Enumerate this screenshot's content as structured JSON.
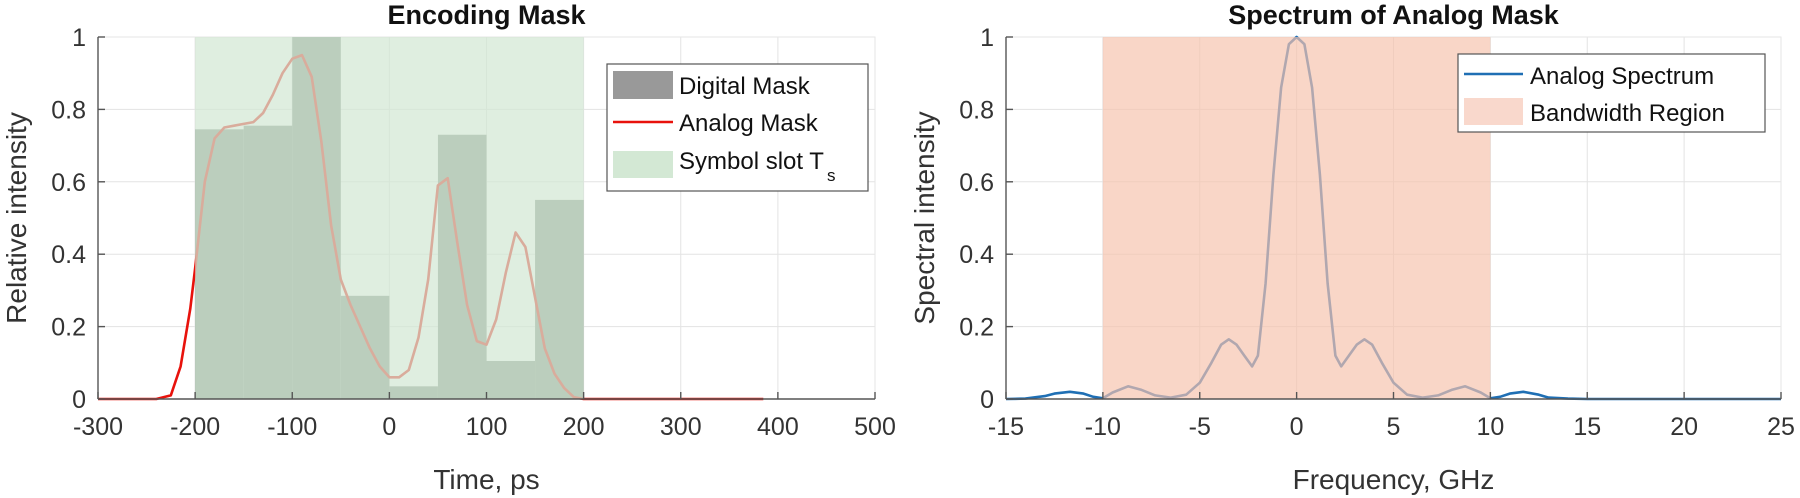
{
  "chart_data": [
    {
      "type": "bar+line",
      "title": "Encoding Mask",
      "xlabel": "Time, ps",
      "ylabel": "Relative intensity",
      "xlim": [
        -300,
        500
      ],
      "ylim": [
        0,
        1
      ],
      "xticks": [
        -300,
        -200,
        -100,
        0,
        100,
        200,
        300,
        400,
        500
      ],
      "yticks": [
        0,
        0.2,
        0.4,
        0.6,
        0.8,
        1
      ],
      "ytick_labels": [
        "0",
        "0.2",
        "0.4",
        "0.6",
        "0.8",
        "1"
      ],
      "grid": true,
      "legend_position": "northeast",
      "legend": [
        "Digital Mask",
        "Analog Mask",
        "Symbol slot T_s"
      ],
      "series": [
        {
          "name": "Digital Mask",
          "type": "bar",
          "color": "#7f8c80",
          "bins": [
            [
              -200,
              -150
            ],
            [
              -150,
              -100
            ],
            [
              -100,
              -50
            ],
            [
              -50,
              0
            ],
            [
              0,
              50
            ],
            [
              50,
              100
            ],
            [
              100,
              150
            ],
            [
              150,
              200
            ]
          ],
          "values": [
            0.745,
            0.755,
            1.0,
            0.285,
            0.035,
            0.73,
            0.105,
            0.55
          ]
        },
        {
          "name": "Analog Mask",
          "type": "line",
          "color": "#e8120c",
          "x": [
            -300,
            -240,
            -225,
            -215,
            -205,
            -200,
            -190,
            -180,
            -170,
            -160,
            -150,
            -140,
            -130,
            -120,
            -110,
            -100,
            -90,
            -80,
            -70,
            -60,
            -50,
            -40,
            -30,
            -20,
            -10,
            0,
            10,
            20,
            30,
            40,
            50,
            60,
            70,
            80,
            90,
            100,
            110,
            120,
            130,
            140,
            150,
            160,
            170,
            180,
            190,
            200,
            210,
            220,
            240,
            385
          ],
          "y": [
            0,
            0,
            0.01,
            0.09,
            0.25,
            0.36,
            0.6,
            0.72,
            0.75,
            0.755,
            0.76,
            0.765,
            0.79,
            0.84,
            0.9,
            0.94,
            0.95,
            0.89,
            0.71,
            0.48,
            0.33,
            0.26,
            0.2,
            0.14,
            0.09,
            0.06,
            0.06,
            0.08,
            0.17,
            0.33,
            0.59,
            0.61,
            0.43,
            0.26,
            0.16,
            0.15,
            0.22,
            0.35,
            0.46,
            0.42,
            0.28,
            0.14,
            0.07,
            0.03,
            0.005,
            0,
            0,
            0,
            0,
            0
          ]
        },
        {
          "name": "Symbol slot T_s",
          "type": "area",
          "color": "#d3e8d4",
          "x_range": [
            -200,
            200
          ],
          "y_range": [
            0,
            1
          ]
        }
      ]
    },
    {
      "type": "line",
      "title": "Spectrum of Analog Mask",
      "xlabel": "Frequency, GHz",
      "ylabel": "Spectral intensity",
      "xlim": [
        -15,
        25
      ],
      "ylim": [
        0,
        1
      ],
      "xticks": [
        -15,
        -10,
        -5,
        0,
        5,
        10,
        15,
        20,
        25
      ],
      "yticks": [
        0,
        0.2,
        0.4,
        0.6,
        0.8,
        1
      ],
      "ytick_labels": [
        "0",
        "0.2",
        "0.4",
        "0.6",
        "0.8",
        "1"
      ],
      "grid": true,
      "legend_position": "northeast",
      "legend": [
        "Analog Spectrum",
        "Bandwidth Region"
      ],
      "series": [
        {
          "name": "Analog Spectrum",
          "type": "line",
          "color": "#1f6fb4",
          "x": [
            -15,
            -14,
            -13,
            -12.5,
            -11.7,
            -11,
            -10.5,
            -10,
            -9.5,
            -8.7,
            -8,
            -7.3,
            -6.5,
            -5.7,
            -5,
            -4.4,
            -3.9,
            -3.5,
            -3.1,
            -2.7,
            -2.3,
            -2,
            -1.6,
            -1.2,
            -0.8,
            -0.4,
            0,
            0.4,
            0.8,
            1.2,
            1.6,
            2,
            2.3,
            2.7,
            3.1,
            3.5,
            3.9,
            4.4,
            5,
            5.7,
            6.5,
            7.3,
            8,
            8.7,
            9.5,
            10,
            10.5,
            11,
            11.7,
            12.5,
            13,
            14,
            15,
            20,
            25
          ],
          "y": [
            0,
            0.001,
            0.008,
            0.015,
            0.02,
            0.015,
            0.006,
            0.002,
            0.018,
            0.035,
            0.025,
            0.01,
            0.004,
            0.012,
            0.045,
            0.1,
            0.15,
            0.165,
            0.15,
            0.12,
            0.09,
            0.12,
            0.32,
            0.62,
            0.86,
            0.98,
            1.0,
            0.98,
            0.86,
            0.62,
            0.32,
            0.12,
            0.09,
            0.12,
            0.15,
            0.165,
            0.15,
            0.1,
            0.045,
            0.012,
            0.004,
            0.01,
            0.025,
            0.035,
            0.018,
            0.002,
            0.006,
            0.015,
            0.02,
            0.012,
            0.004,
            0.001,
            0,
            0,
            0
          ]
        },
        {
          "name": "Bandwidth Region",
          "type": "area",
          "color": "#f6c2ad",
          "x_range": [
            -10,
            10
          ],
          "y_range": [
            0,
            1
          ]
        }
      ]
    }
  ],
  "left_chart": {
    "title": "Encoding Mask",
    "xlabel": "Time, ps",
    "ylabel": "Relative intensity",
    "legend": {
      "digital": "Digital Mask",
      "analog": "Analog Mask",
      "slot": "Symbol slot T",
      "slot_sub": "s"
    }
  },
  "right_chart": {
    "title": "Spectrum of Analog Mask",
    "xlabel": "Frequency, GHz",
    "ylabel": "Spectral intensity",
    "legend": {
      "spectrum": "Analog Spectrum",
      "band": "Bandwidth Region"
    }
  }
}
